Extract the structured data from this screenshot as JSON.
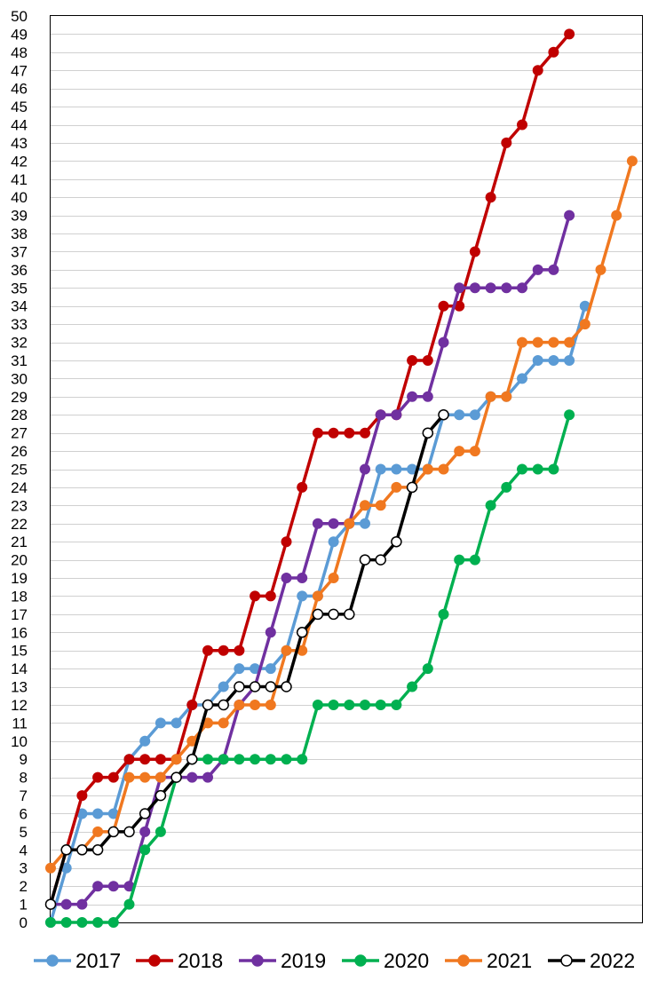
{
  "chart_data": {
    "type": "line",
    "title": "",
    "xlabel": "",
    "ylabel": "",
    "ylim": [
      0,
      50
    ],
    "yticks": [
      0,
      1,
      2,
      3,
      4,
      5,
      6,
      7,
      8,
      9,
      10,
      11,
      12,
      13,
      14,
      15,
      16,
      17,
      18,
      19,
      20,
      21,
      22,
      23,
      24,
      25,
      26,
      27,
      28,
      29,
      30,
      31,
      32,
      33,
      34,
      35,
      36,
      37,
      38,
      39,
      40,
      41,
      42,
      43,
      44,
      45,
      46,
      47,
      48,
      49,
      50
    ],
    "xlim": [
      0,
      38
    ],
    "grid": "horizontal",
    "legend": "bottom",
    "series": [
      {
        "name": "2017",
        "color": "#5b9bd5",
        "marker_fill": "#5b9bd5",
        "values": [
          0,
          3,
          6,
          6,
          6,
          9,
          10,
          11,
          11,
          12,
          12,
          13,
          14,
          14,
          14,
          15,
          18,
          18,
          21,
          22,
          22,
          25,
          25,
          25,
          25,
          28,
          28,
          28,
          29,
          29,
          30,
          31,
          31,
          31,
          34
        ]
      },
      {
        "name": "2018",
        "color": "#c00000",
        "marker_fill": "#c00000",
        "values": [
          1,
          4,
          7,
          8,
          8,
          9,
          9,
          9,
          9,
          12,
          15,
          15,
          15,
          18,
          18,
          21,
          24,
          27,
          27,
          27,
          27,
          28,
          28,
          31,
          31,
          34,
          34,
          37,
          40,
          43,
          44,
          47,
          48,
          49
        ]
      },
      {
        "name": "2019",
        "color": "#7030a0",
        "marker_fill": "#7030a0",
        "values": [
          1,
          1,
          1,
          2,
          2,
          2,
          5,
          8,
          8,
          8,
          8,
          9,
          12,
          13,
          16,
          19,
          19,
          22,
          22,
          22,
          25,
          28,
          28,
          29,
          29,
          32,
          35,
          35,
          35,
          35,
          35,
          36,
          36,
          39
        ]
      },
      {
        "name": "2020",
        "color": "#00b050",
        "marker_fill": "#00b050",
        "values": [
          0,
          0,
          0,
          0,
          0,
          1,
          4,
          5,
          8,
          9,
          9,
          9,
          9,
          9,
          9,
          9,
          9,
          12,
          12,
          12,
          12,
          12,
          12,
          13,
          14,
          17,
          20,
          20,
          23,
          24,
          25,
          25,
          25,
          28
        ]
      },
      {
        "name": "2021",
        "color": "#f07820",
        "marker_fill": "#f07820",
        "values": [
          3,
          4,
          4,
          5,
          5,
          8,
          8,
          8,
          9,
          10,
          11,
          11,
          12,
          12,
          12,
          15,
          15,
          18,
          19,
          22,
          23,
          23,
          24,
          24,
          25,
          25,
          26,
          26,
          29,
          29,
          32,
          32,
          32,
          32,
          33,
          36,
          39,
          42
        ]
      },
      {
        "name": "2022",
        "color": "#000000",
        "marker_fill": "#ffffff",
        "values": [
          1,
          4,
          4,
          4,
          5,
          5,
          6,
          7,
          8,
          9,
          12,
          12,
          13,
          13,
          13,
          13,
          16,
          17,
          17,
          17,
          20,
          20,
          21,
          24,
          27,
          28
        ]
      }
    ]
  }
}
